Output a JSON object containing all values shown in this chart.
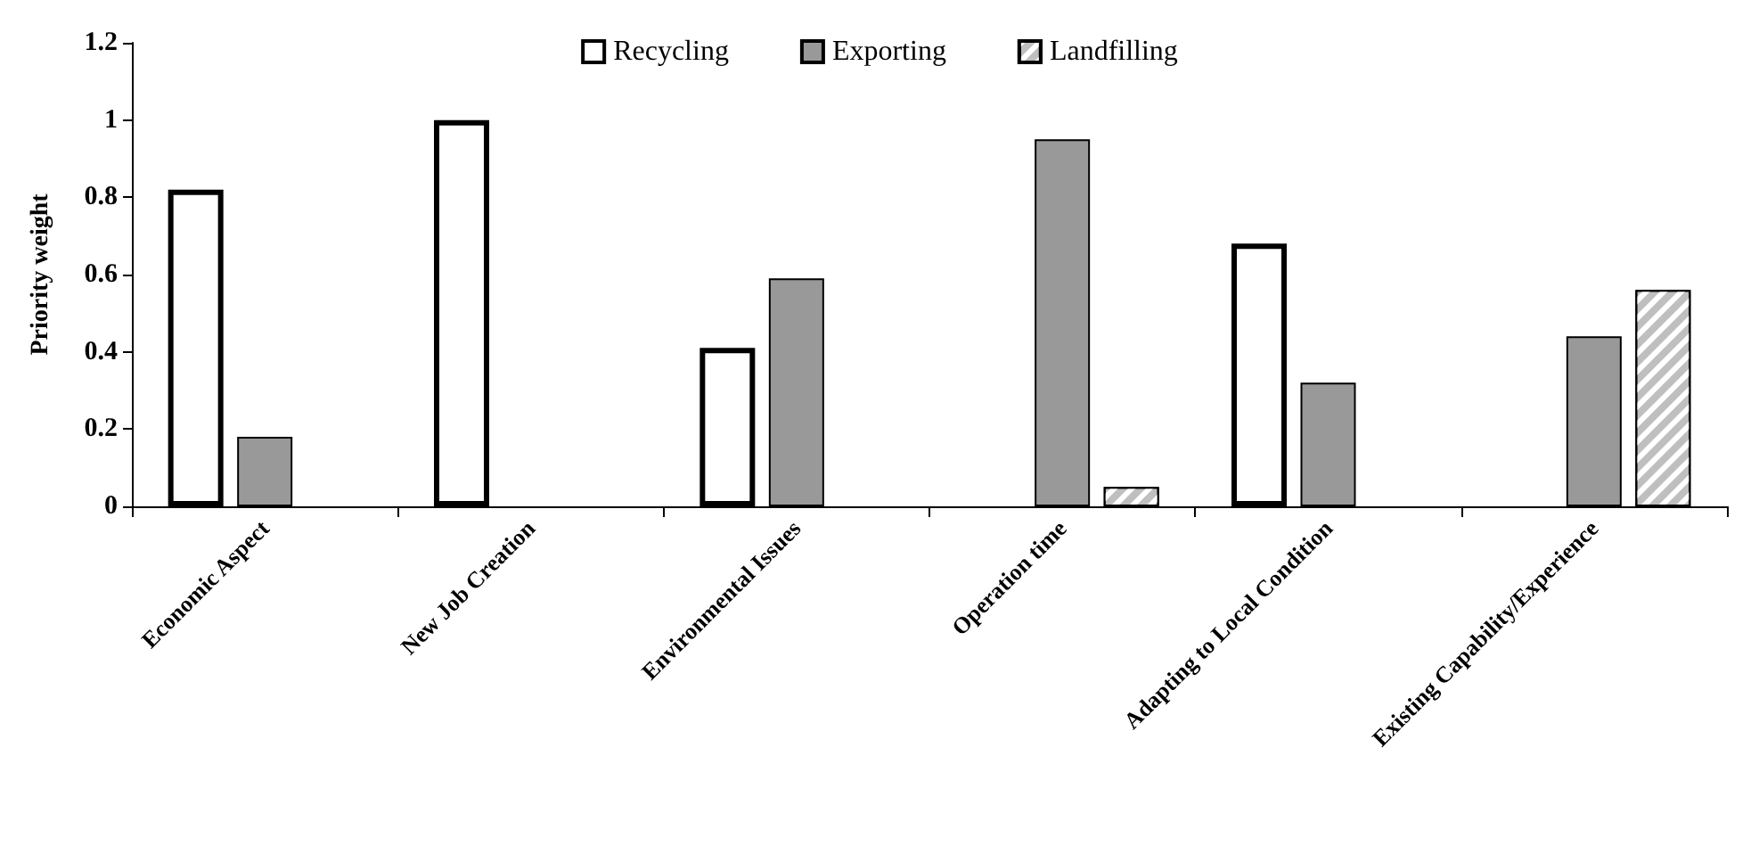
{
  "chart_data": {
    "type": "bar",
    "ylabel": "Priority weight",
    "categories": [
      "Economic Aspect",
      "New Job Creation",
      "Environmental Issues",
      "Operation time",
      "Adapting to Local Condition",
      "Existing Capability/Experience"
    ],
    "series": [
      {
        "name": "Recycling",
        "color": "#ffffff",
        "values": [
          0.82,
          1.0,
          0.41,
          null,
          0.68,
          null
        ]
      },
      {
        "name": "Exporting",
        "color": "#999999",
        "values": [
          0.18,
          null,
          0.59,
          0.95,
          0.32,
          0.44
        ]
      },
      {
        "name": "Landfilling",
        "color": "#bfbfbf",
        "values": [
          null,
          null,
          null,
          0.05,
          null,
          0.56
        ]
      }
    ],
    "ylim": [
      0,
      1.2
    ],
    "yticks": [
      0,
      0.2,
      0.4,
      0.6,
      0.8,
      1,
      1.2
    ],
    "grid": false,
    "legend": "top"
  }
}
